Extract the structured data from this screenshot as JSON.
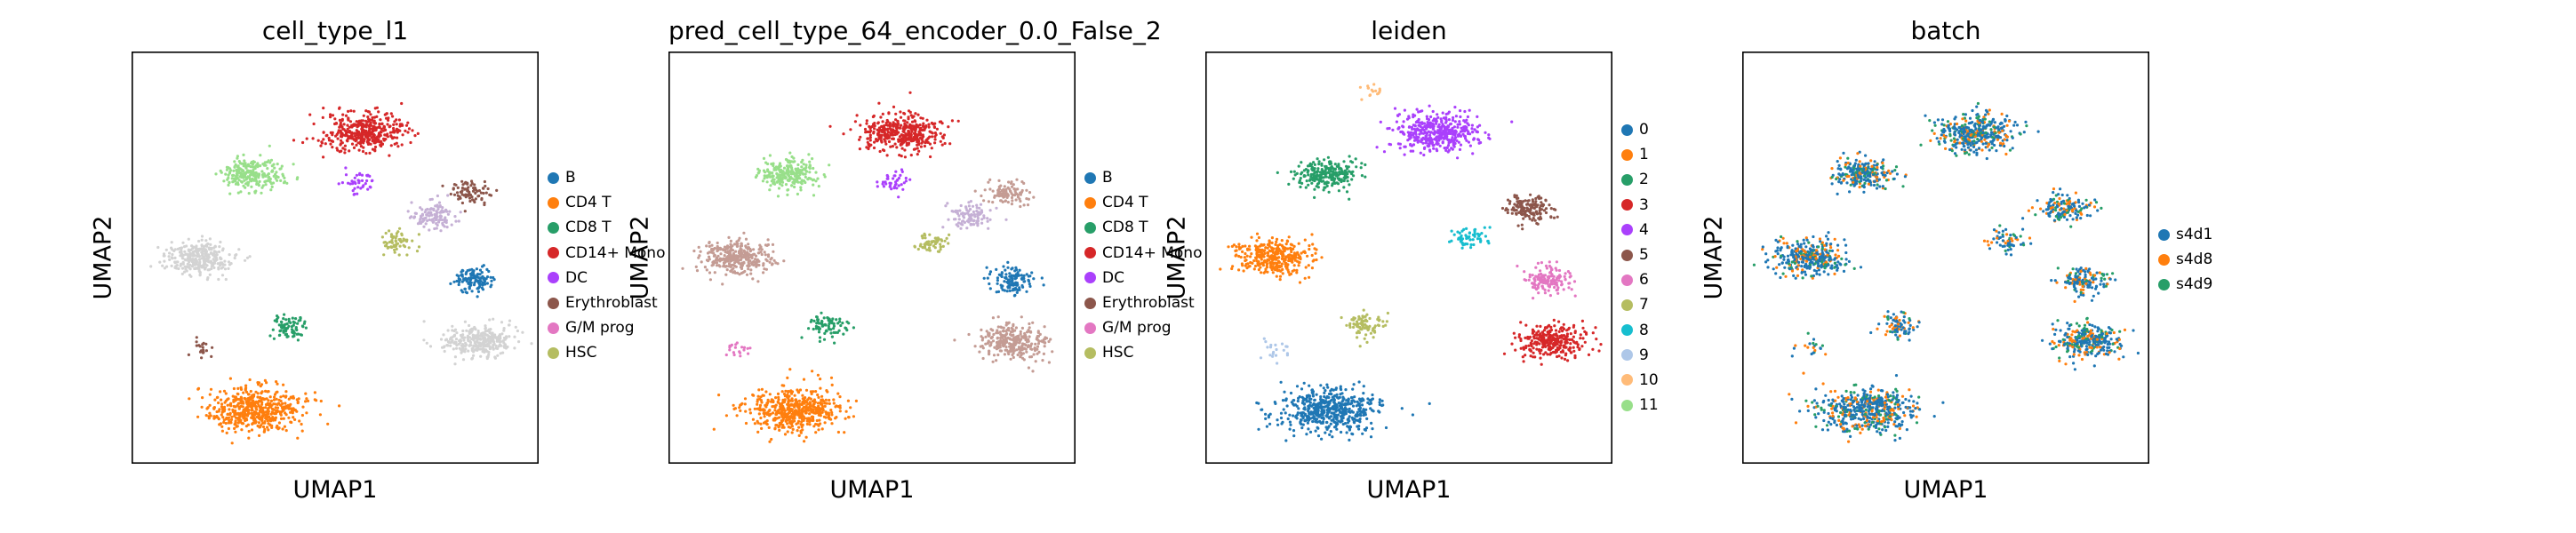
{
  "chart_data": [
    {
      "type": "scatter",
      "title": "cell_type_l1",
      "xlabel": "UMAP1",
      "ylabel": "UMAP2",
      "legend_placement": "right",
      "legend": [
        {
          "label": "B",
          "color": "#1f77b4"
        },
        {
          "label": "CD4 T",
          "color": "#ff7f0e"
        },
        {
          "label": "CD8 T",
          "color": "#279e68"
        },
        {
          "label": "CD14+ Mono",
          "color": "#d62728"
        },
        {
          "label": "DC",
          "color": "#aa40fc"
        },
        {
          "label": "Erythroblast",
          "color": "#8c564b"
        },
        {
          "label": "G/M prog",
          "color": "#e377c2"
        },
        {
          "label": "HSC",
          "color": "#b5bd61"
        }
      ],
      "clusters": [
        {
          "c": "#d62728",
          "x": 0.58,
          "y": 0.83,
          "n": 400
        },
        {
          "c": "#aa40fc",
          "x": 0.56,
          "y": 0.7,
          "n": 40
        },
        {
          "c": "#98df8a",
          "x": 0.28,
          "y": 0.72,
          "n": 240
        },
        {
          "c": "#8c564b",
          "x": 0.86,
          "y": 0.67,
          "n": 80
        },
        {
          "c": "#c5b0d5",
          "x": 0.76,
          "y": 0.61,
          "n": 120
        },
        {
          "c": "#b5bd61",
          "x": 0.66,
          "y": 0.54,
          "n": 60
        },
        {
          "c": "#d3d3d3",
          "x": 0.14,
          "y": 0.5,
          "n": 300
        },
        {
          "c": "#279e68",
          "x": 0.38,
          "y": 0.32,
          "n": 80
        },
        {
          "c": "#1f77b4",
          "x": 0.87,
          "y": 0.44,
          "n": 120
        },
        {
          "c": "#d3d3d3",
          "x": 0.88,
          "y": 0.28,
          "n": 300
        },
        {
          "c": "#8c564b",
          "x": 0.14,
          "y": 0.26,
          "n": 20
        },
        {
          "c": "#ff7f0e",
          "x": 0.29,
          "y": 0.1,
          "n": 520
        }
      ]
    },
    {
      "type": "scatter",
      "title": "pred_cell_type_64_encoder_0.0_False_2",
      "xlabel": "UMAP1",
      "ylabel": "UMAP2",
      "legend_placement": "right",
      "legend": [
        {
          "label": "B",
          "color": "#1f77b4"
        },
        {
          "label": "CD4 T",
          "color": "#ff7f0e"
        },
        {
          "label": "CD8 T",
          "color": "#279e68"
        },
        {
          "label": "CD14+ Mono",
          "color": "#d62728"
        },
        {
          "label": "DC",
          "color": "#aa40fc"
        },
        {
          "label": "Erythroblast",
          "color": "#8c564b"
        },
        {
          "label": "G/M prog",
          "color": "#e377c2"
        },
        {
          "label": "HSC",
          "color": "#b5bd61"
        }
      ],
      "clusters": [
        {
          "c": "#d62728",
          "x": 0.58,
          "y": 0.83,
          "n": 400
        },
        {
          "c": "#aa40fc",
          "x": 0.56,
          "y": 0.7,
          "n": 40
        },
        {
          "c": "#98df8a",
          "x": 0.28,
          "y": 0.72,
          "n": 240
        },
        {
          "c": "#c49c94",
          "x": 0.86,
          "y": 0.67,
          "n": 100
        },
        {
          "c": "#c5b0d5",
          "x": 0.76,
          "y": 0.61,
          "n": 100
        },
        {
          "c": "#b5bd61",
          "x": 0.66,
          "y": 0.54,
          "n": 60
        },
        {
          "c": "#c49c94",
          "x": 0.14,
          "y": 0.5,
          "n": 320
        },
        {
          "c": "#279e68",
          "x": 0.38,
          "y": 0.32,
          "n": 80
        },
        {
          "c": "#1f77b4",
          "x": 0.87,
          "y": 0.44,
          "n": 120
        },
        {
          "c": "#c49c94",
          "x": 0.88,
          "y": 0.28,
          "n": 300
        },
        {
          "c": "#e377c2",
          "x": 0.14,
          "y": 0.26,
          "n": 20
        },
        {
          "c": "#ff7f0e",
          "x": 0.29,
          "y": 0.1,
          "n": 520
        }
      ]
    },
    {
      "type": "scatter",
      "title": "leiden",
      "xlabel": "UMAP1",
      "ylabel": "UMAP2",
      "legend_placement": "right",
      "legend": [
        {
          "label": "0",
          "color": "#1f77b4"
        },
        {
          "label": "1",
          "color": "#ff7f0e"
        },
        {
          "label": "2",
          "color": "#279e68"
        },
        {
          "label": "3",
          "color": "#d62728"
        },
        {
          "label": "4",
          "color": "#aa40fc"
        },
        {
          "label": "5",
          "color": "#8c564b"
        },
        {
          "label": "6",
          "color": "#e377c2"
        },
        {
          "label": "7",
          "color": "#b5bd61"
        },
        {
          "label": "8",
          "color": "#17becf"
        },
        {
          "label": "9",
          "color": "#aec7e8"
        },
        {
          "label": "10",
          "color": "#ffbb78"
        },
        {
          "label": "11",
          "color": "#98df8a"
        }
      ],
      "clusters": [
        {
          "c": "#aa40fc",
          "x": 0.58,
          "y": 0.83,
          "n": 420
        },
        {
          "c": "#279e68",
          "x": 0.28,
          "y": 0.72,
          "n": 240
        },
        {
          "c": "#8c564b",
          "x": 0.82,
          "y": 0.63,
          "n": 150
        },
        {
          "c": "#17becf",
          "x": 0.66,
          "y": 0.55,
          "n": 60
        },
        {
          "c": "#ff7f0e",
          "x": 0.14,
          "y": 0.5,
          "n": 340
        },
        {
          "c": "#b5bd61",
          "x": 0.38,
          "y": 0.32,
          "n": 80
        },
        {
          "c": "#e377c2",
          "x": 0.87,
          "y": 0.44,
          "n": 140
        },
        {
          "c": "#d62728",
          "x": 0.88,
          "y": 0.28,
          "n": 300
        },
        {
          "c": "#aec7e8",
          "x": 0.14,
          "y": 0.26,
          "n": 20
        },
        {
          "c": "#1f77b4",
          "x": 0.29,
          "y": 0.1,
          "n": 520
        },
        {
          "c": "#ffbb78",
          "x": 0.4,
          "y": 0.94,
          "n": 16
        }
      ]
    },
    {
      "type": "scatter",
      "title": "batch",
      "xlabel": "UMAP1",
      "ylabel": "UMAP2",
      "legend_placement": "right",
      "legend": [
        {
          "label": "s4d1",
          "color": "#1f77b4"
        },
        {
          "label": "s4d8",
          "color": "#ff7f0e"
        },
        {
          "label": "s4d9",
          "color": "#279e68"
        }
      ],
      "clusters": [
        {
          "c": "mix",
          "x": 0.58,
          "y": 0.83,
          "n": 400
        },
        {
          "c": "mix",
          "x": 0.28,
          "y": 0.72,
          "n": 240
        },
        {
          "c": "mix",
          "x": 0.82,
          "y": 0.63,
          "n": 150
        },
        {
          "c": "mix",
          "x": 0.66,
          "y": 0.54,
          "n": 60
        },
        {
          "c": "mix",
          "x": 0.14,
          "y": 0.5,
          "n": 340
        },
        {
          "c": "mix",
          "x": 0.38,
          "y": 0.32,
          "n": 80
        },
        {
          "c": "mix",
          "x": 0.87,
          "y": 0.44,
          "n": 140
        },
        {
          "c": "mix",
          "x": 0.88,
          "y": 0.28,
          "n": 300
        },
        {
          "c": "mix",
          "x": 0.14,
          "y": 0.26,
          "n": 20
        },
        {
          "c": "mix",
          "x": 0.29,
          "y": 0.1,
          "n": 520
        }
      ]
    }
  ]
}
